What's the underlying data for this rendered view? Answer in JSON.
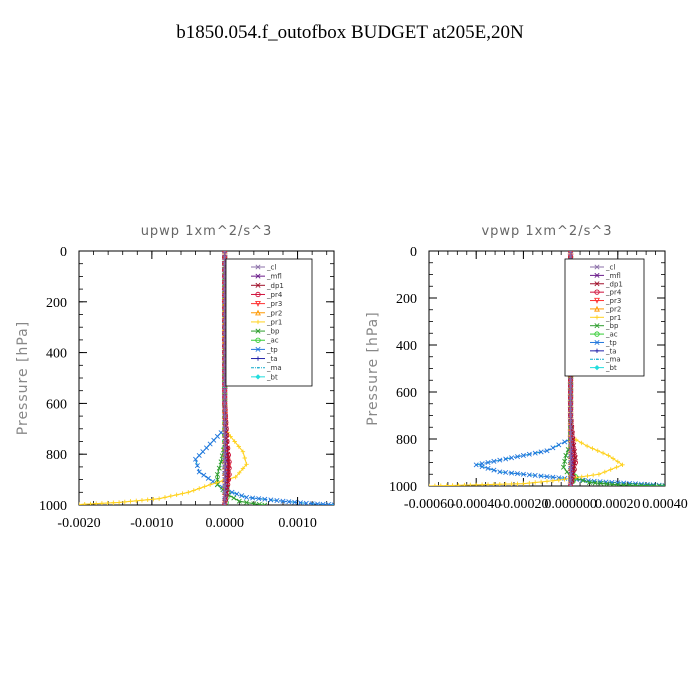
{
  "title": "b1850.054.f_outofbox  BUDGET at205E,20N",
  "chart_data": [
    {
      "type": "line",
      "title": "upwp   1xm^2/s^3",
      "ylabel": "Pressure [hPa]",
      "xlabel": "",
      "xlim": [
        -0.002,
        0.0015
      ],
      "ylim": [
        1000,
        0
      ],
      "xticks": [
        -0.002,
        -0.001,
        0.0,
        0.001
      ],
      "xtick_labels": [
        "-0.0020",
        "-0.0010",
        "0.0000",
        "0.0010"
      ],
      "yticks": [
        0,
        200,
        400,
        600,
        800,
        1000
      ],
      "ytick_labels": [
        "0",
        "200",
        "400",
        "600",
        "800",
        "1000"
      ],
      "legend_position": "top-right",
      "series": [
        {
          "name": "_cl",
          "color": "#8b6fa8",
          "marker": "x",
          "points": [
            [
              0,
              0
            ],
            [
              0,
              200
            ],
            [
              0,
              400
            ],
            [
              0,
              600
            ],
            [
              0,
              800
            ],
            [
              0,
              1000
            ]
          ]
        },
        {
          "name": "_mfl",
          "color": "#6a1b8a",
          "marker": "x",
          "points": [
            [
              0,
              0
            ],
            [
              0,
              200
            ],
            [
              0,
              400
            ],
            [
              0,
              600
            ],
            [
              1e-05,
              800
            ],
            [
              1e-05,
              950
            ],
            [
              0,
              1000
            ]
          ]
        },
        {
          "name": "_dp1",
          "color": "#a0102a",
          "marker": "x",
          "points": [
            [
              0,
              0
            ],
            [
              0,
              200
            ],
            [
              0,
              400
            ],
            [
              0,
              600
            ],
            [
              2e-05,
              700
            ],
            [
              4e-05,
              800
            ],
            [
              5e-05,
              860
            ],
            [
              3e-05,
              930
            ],
            [
              0,
              1000
            ]
          ]
        },
        {
          "name": "_pr4",
          "color": "#d0103a",
          "marker": "o",
          "points": [
            [
              0,
              0
            ],
            [
              0,
              200
            ],
            [
              0,
              400
            ],
            [
              0,
              600
            ],
            [
              3e-05,
              750
            ],
            [
              6e-05,
              830
            ],
            [
              6e-05,
              880
            ],
            [
              3e-05,
              940
            ],
            [
              0,
              1000
            ]
          ]
        },
        {
          "name": "_pr3",
          "color": "#ff3030",
          "marker": "v",
          "points": [
            [
              0,
              0
            ],
            [
              0,
              200
            ],
            [
              0,
              400
            ],
            [
              0,
              600
            ],
            [
              2e-05,
              760
            ],
            [
              5e-05,
              850
            ],
            [
              4e-05,
              910
            ],
            [
              0,
              1000
            ]
          ]
        },
        {
          "name": "_pr2",
          "color": "#ff9900",
          "marker": "^",
          "points": [
            [
              0,
              0
            ],
            [
              0,
              400
            ],
            [
              0,
              600
            ],
            [
              0,
              700
            ],
            [
              0,
              800
            ],
            [
              0,
              1000
            ]
          ]
        },
        {
          "name": "_pr1",
          "color": "#ffd21f",
          "marker": "+",
          "points": [
            [
              0,
              0
            ],
            [
              0,
              400
            ],
            [
              0,
              600
            ],
            [
              0,
              700
            ],
            [
              8e-05,
              730
            ],
            [
              0.00025,
              790
            ],
            [
              0.0003,
              840
            ],
            [
              0.00015,
              890
            ],
            [
              -0.0002,
              920
            ],
            [
              -0.0005,
              950
            ],
            [
              -0.0009,
              975
            ],
            [
              -0.00145,
              990
            ],
            [
              -0.002,
              998
            ]
          ]
        },
        {
          "name": "_bp",
          "color": "#2e9e2e",
          "marker": "x",
          "points": [
            [
              0,
              0
            ],
            [
              0,
              600
            ],
            [
              0,
              760
            ],
            [
              -5e-05,
              830
            ],
            [
              -0.0001,
              880
            ],
            [
              -0.0001,
              920
            ],
            [
              5e-05,
              960
            ],
            [
              0.0002,
              985
            ],
            [
              0.0004,
              995
            ],
            [
              0.00055,
              1000
            ]
          ]
        },
        {
          "name": "_ac",
          "color": "#33cc33",
          "marker": "o",
          "points": [
            [
              0,
              0
            ],
            [
              0,
              700
            ],
            [
              0,
              800
            ],
            [
              2e-05,
              880
            ],
            [
              4e-05,
              950
            ],
            [
              2e-05,
              990
            ],
            [
              0,
              1000
            ]
          ]
        },
        {
          "name": "_tp",
          "color": "#2277dd",
          "marker": "x",
          "points": [
            [
              0,
              0
            ],
            [
              0,
              600
            ],
            [
              0,
              700
            ],
            [
              -0.0002,
              760
            ],
            [
              -0.0004,
              820
            ],
            [
              -0.00035,
              870
            ],
            [
              -0.0001,
              920
            ],
            [
              0.0001,
              950
            ],
            [
              0.0003,
              970
            ],
            [
              0.0008,
              985
            ],
            [
              0.0012,
              995
            ],
            [
              0.0015,
              999
            ]
          ]
        },
        {
          "name": "_ta",
          "color": "#2222aa",
          "marker": "+",
          "points": [
            [
              0,
              0
            ],
            [
              0,
              400
            ],
            [
              0,
              800
            ],
            [
              0,
              1000
            ]
          ]
        },
        {
          "name": "_ma",
          "color": "#11aacc",
          "marker": "-.",
          "points": [
            [
              0,
              0
            ],
            [
              0,
              600
            ],
            [
              0,
              700
            ],
            [
              -0.0002,
              760
            ],
            [
              -0.0004,
              820
            ],
            [
              -0.00035,
              870
            ],
            [
              -0.0001,
              920
            ],
            [
              0.0001,
              950
            ],
            [
              0.0003,
              970
            ],
            [
              0.0008,
              985
            ],
            [
              0.0012,
              995
            ],
            [
              0.0015,
              999
            ]
          ]
        },
        {
          "name": "_bt",
          "color": "#22dddd",
          "marker": "diamond",
          "points": [
            [
              0,
              0
            ],
            [
              0,
              400
            ],
            [
              0,
              800
            ],
            [
              0,
              1000
            ]
          ]
        }
      ]
    },
    {
      "type": "line",
      "title": "vpwp   1xm^2/s^3",
      "ylabel": "Pressure [hPa]",
      "xlabel": "",
      "xlim": [
        -0.0006,
        0.0004
      ],
      "ylim": [
        1000,
        0
      ],
      "xticks": [
        -0.0006,
        -0.0004,
        -0.0002,
        0.0,
        0.0002,
        0.0004
      ],
      "xtick_labels": [
        "-0.00060",
        "-0.00040",
        "-0.00020",
        "0.000000",
        "0.00020",
        "0.00040"
      ],
      "yticks": [
        0,
        200,
        400,
        600,
        800,
        1000
      ],
      "ytick_labels": [
        "0",
        "200",
        "400",
        "600",
        "800",
        "1000"
      ],
      "legend_position": "top-right",
      "series": [
        {
          "name": "_cl",
          "color": "#8b6fa8",
          "marker": "x",
          "points": [
            [
              0,
              0
            ],
            [
              0,
              400
            ],
            [
              0,
              800
            ],
            [
              0,
              1000
            ]
          ]
        },
        {
          "name": "_mfl",
          "color": "#6a1b8a",
          "marker": "x",
          "points": [
            [
              0,
              0
            ],
            [
              0,
              400
            ],
            [
              0,
              800
            ],
            [
              5e-06,
              900
            ],
            [
              0,
              1000
            ]
          ]
        },
        {
          "name": "_dp1",
          "color": "#a0102a",
          "marker": "x",
          "points": [
            [
              0,
              0
            ],
            [
              0,
              400
            ],
            [
              0,
              700
            ],
            [
              1e-05,
              800
            ],
            [
              2e-05,
              880
            ],
            [
              1e-05,
              950
            ],
            [
              0,
              1000
            ]
          ]
        },
        {
          "name": "_pr4",
          "color": "#d0103a",
          "marker": "o",
          "points": [
            [
              0,
              0
            ],
            [
              0,
              400
            ],
            [
              0,
              700
            ],
            [
              1e-05,
              820
            ],
            [
              2e-05,
              900
            ],
            [
              1e-05,
              960
            ],
            [
              0,
              1000
            ]
          ]
        },
        {
          "name": "_pr3",
          "color": "#ff3030",
          "marker": "v",
          "points": [
            [
              0,
              0
            ],
            [
              0,
              400
            ],
            [
              0,
              800
            ],
            [
              1e-05,
              900
            ],
            [
              0,
              1000
            ]
          ]
        },
        {
          "name": "_pr2",
          "color": "#ff9900",
          "marker": "^",
          "points": [
            [
              0,
              0
            ],
            [
              0,
              400
            ],
            [
              0,
              800
            ],
            [
              0,
              1000
            ]
          ]
        },
        {
          "name": "_pr1",
          "color": "#ffd21f",
          "marker": "+",
          "points": [
            [
              0,
              0
            ],
            [
              0,
              600
            ],
            [
              0,
              790
            ],
            [
              7e-05,
              830
            ],
            [
              0.00016,
              870
            ],
            [
              0.00022,
              910
            ],
            [
              0.00012,
              950
            ],
            [
              -5e-05,
              975
            ],
            [
              -0.0002,
              990
            ],
            [
              -0.0006,
              1000
            ]
          ]
        },
        {
          "name": "_bp",
          "color": "#2e9e2e",
          "marker": "x",
          "points": [
            [
              0,
              0
            ],
            [
              0,
              700
            ],
            [
              0,
              820
            ],
            [
              -2e-05,
              870
            ],
            [
              -3e-05,
              920
            ],
            [
              0,
              960
            ],
            [
              8e-05,
              985
            ],
            [
              0.0002,
              995
            ],
            [
              0.0004,
              1000
            ]
          ]
        },
        {
          "name": "_ac",
          "color": "#33cc33",
          "marker": "o",
          "points": [
            [
              0,
              0
            ],
            [
              0,
              800
            ],
            [
              1e-05,
              900
            ],
            [
              2e-05,
              960
            ],
            [
              0,
              1000
            ]
          ]
        },
        {
          "name": "_tp",
          "color": "#2277dd",
          "marker": "x",
          "points": [
            [
              0,
              0
            ],
            [
              0,
              600
            ],
            [
              0,
              800
            ],
            [
              -0.0001,
              850
            ],
            [
              -0.00025,
              880
            ],
            [
              -0.0004,
              910
            ],
            [
              -0.0003,
              940
            ],
            [
              -0.0001,
              960
            ],
            [
              0.0001,
              980
            ],
            [
              0.0003,
              992
            ],
            [
              0.0004,
              998
            ]
          ]
        },
        {
          "name": "_ta",
          "color": "#2222aa",
          "marker": "+",
          "points": [
            [
              0,
              0
            ],
            [
              0,
              400
            ],
            [
              0,
              800
            ],
            [
              0,
              1000
            ]
          ]
        },
        {
          "name": "_ma",
          "color": "#11aacc",
          "marker": "-.",
          "points": [
            [
              0,
              0
            ],
            [
              0,
              600
            ],
            [
              0,
              800
            ],
            [
              -0.0001,
              850
            ],
            [
              -0.00025,
              880
            ],
            [
              -0.0004,
              910
            ],
            [
              -0.0003,
              940
            ],
            [
              -0.0001,
              960
            ],
            [
              0.0001,
              980
            ],
            [
              0.0003,
              992
            ],
            [
              0.0004,
              998
            ]
          ]
        },
        {
          "name": "_bt",
          "color": "#22dddd",
          "marker": "diamond",
          "points": [
            [
              0,
              0
            ],
            [
              0,
              400
            ],
            [
              0,
              800
            ],
            [
              0,
              1000
            ]
          ]
        }
      ]
    }
  ]
}
